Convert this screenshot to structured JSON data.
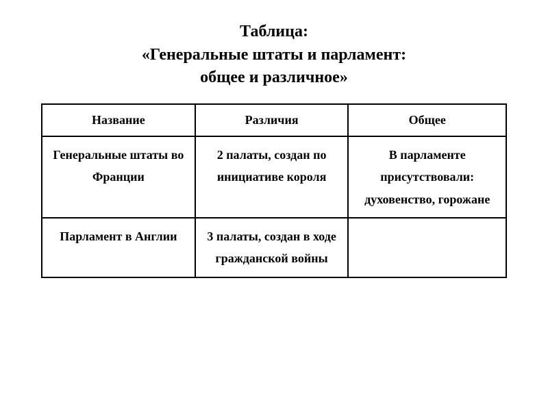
{
  "title": {
    "line1": "Таблица:",
    "line2": "«Генеральные штаты и парламент:",
    "line3": "общее и различное»"
  },
  "table": {
    "headers": {
      "col1": "Название",
      "col2": "Различия",
      "col3": "Общее"
    },
    "rows": [
      {
        "name": "Генеральные штаты во Франции",
        "diff": "2 палаты, создан по инициативе короля",
        "common": "В парламенте присутствовали: духовенство, горожане"
      },
      {
        "name": "Парламент в Англии",
        "diff": "3 палаты, создан в ходе гражданской войны",
        "common": ""
      }
    ]
  },
  "styling": {
    "background_color": "#ffffff",
    "text_color": "#000000",
    "border_color": "#000000",
    "border_width": 2,
    "title_fontsize": 24,
    "cell_fontsize": 18,
    "font_family": "Georgia, Times New Roman, serif",
    "font_weight": "bold"
  }
}
